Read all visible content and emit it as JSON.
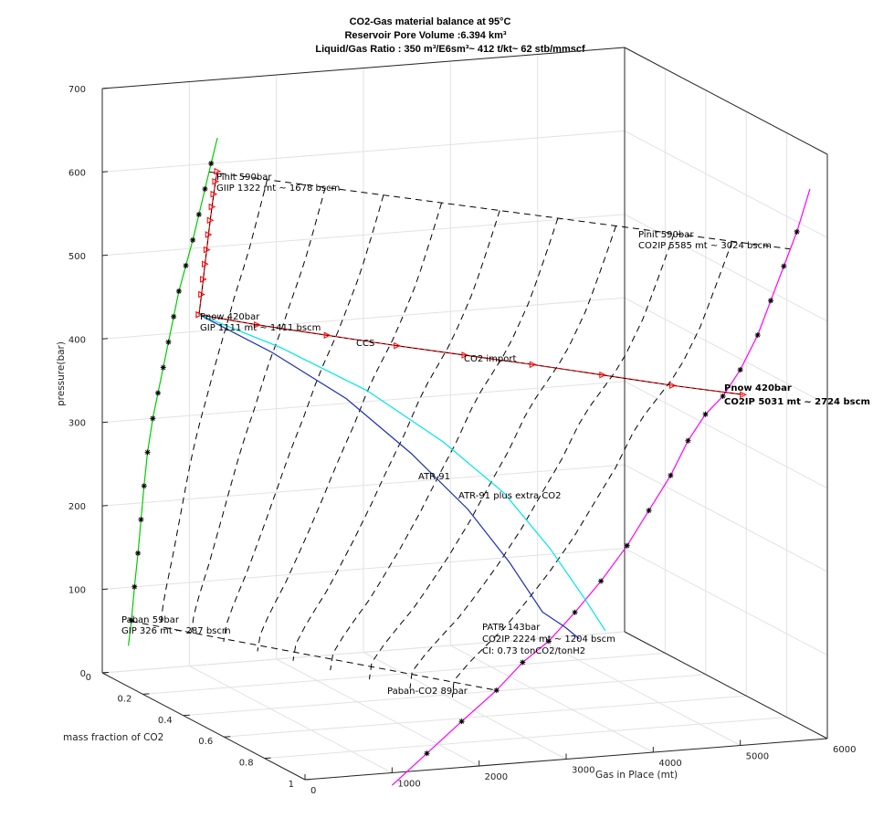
{
  "chart_data": {
    "type": "line",
    "projection": "3d",
    "title": [
      "CO2-Gas material balance at 95°C",
      "Reservoir Pore Volume :6.394 km³",
      "Liquid/Gas Ratio : 350 m³/E6sm³~ 412 t/kt~ 62 stb/mmscf"
    ],
    "xlabel": "Gas in Place  (mt)",
    "ylabel": "mass fraction of CO2",
    "zlabel": "pressure(bar)",
    "xlim": [
      0,
      6000
    ],
    "ylim": [
      0,
      1
    ],
    "zlim": [
      0,
      700
    ],
    "x_ticks": [
      "0",
      "1000",
      "2000",
      "3000",
      "4000",
      "5000",
      "6000"
    ],
    "y_ticks": [
      "0",
      "0.2",
      "0.4",
      "0.6",
      "0.8",
      "1"
    ],
    "z_ticks": [
      "0",
      "100",
      "200",
      "300",
      "400",
      "500",
      "600",
      "700"
    ],
    "grid": true,
    "series": [
      {
        "color": "#00cc00",
        "marker": "asterisk",
        "x": [
          300,
          335,
          370,
          410,
          445,
          480,
          520,
          580,
          640,
          700,
          760,
          820,
          880,
          960,
          1040,
          1110,
          1180,
          1250,
          1322
        ],
        "y": [
          0,
          0,
          0,
          0,
          0,
          0,
          0,
          0,
          0,
          0,
          0,
          0,
          0,
          0,
          0,
          0,
          0,
          0,
          0
        ],
        "z": [
          30,
          60,
          100,
          140,
          180,
          220,
          260,
          300,
          330,
          360,
          390,
          420,
          450,
          480,
          510,
          540,
          570,
          600,
          630
        ]
      },
      {
        "color": "#ff00ff",
        "marker": "asterisk",
        "x": [
          1000,
          1400,
          1800,
          2200,
          2500,
          2800,
          3100,
          3400,
          3700,
          3950,
          4200,
          4400,
          4600,
          4800,
          5000,
          5200,
          5350,
          5500,
          5650,
          5800
        ],
        "y": [
          1,
          1,
          1,
          1,
          1,
          1,
          1,
          1,
          1,
          1,
          1,
          1,
          1,
          1,
          1,
          1,
          1,
          1,
          1,
          1
        ],
        "z": [
          -15,
          20,
          55,
          89,
          120,
          143,
          175,
          210,
          250,
          290,
          330,
          370,
          400,
          420,
          450,
          490,
          530,
          570,
          610,
          660
        ]
      },
      {
        "color": "#ff0000",
        "marker": "triangle",
        "x": [
          1322,
          1300,
          1280,
          1260,
          1240,
          1220,
          1200,
          1180,
          1160,
          1140,
          1111
        ],
        "y": [
          0,
          0,
          0,
          0,
          0,
          0,
          0,
          0,
          0,
          0,
          0
        ],
        "z": [
          590,
          578,
          563,
          548,
          532,
          515,
          497,
          480,
          462,
          444,
          420
        ]
      },
      {
        "color": "#ff0000",
        "marker": "triangle",
        "x": [
          1111,
          1500,
          2000,
          2500,
          3000,
          3500,
          4000,
          4500,
          5031
        ],
        "y": [
          0,
          0.12,
          0.25,
          0.38,
          0.5,
          0.62,
          0.75,
          0.88,
          1
        ],
        "z": [
          420,
          420,
          420,
          420,
          420,
          420,
          420,
          420,
          420
        ]
      },
      {
        "color": "#1c2fb0",
        "x": [
          1111,
          1600,
          2100,
          2500,
          2800,
          3000,
          3100,
          3150,
          3150
        ],
        "y": [
          0,
          0.15,
          0.3,
          0.45,
          0.6,
          0.72,
          0.84,
          0.93,
          1
        ],
        "z": [
          420,
          390,
          350,
          300,
          250,
          200,
          155,
          148,
          143
        ]
      },
      {
        "color": "#00e5e5",
        "x": [
          1111,
          1700,
          2300,
          2800,
          3150,
          3350,
          3450,
          3450
        ],
        "y": [
          0,
          0.15,
          0.32,
          0.48,
          0.63,
          0.77,
          0.9,
          1
        ],
        "z": [
          420,
          395,
          360,
          315,
          270,
          220,
          175,
          150
        ]
      }
    ],
    "annotations": [
      "Pinit 590bar",
      "GIIP 1322 mt ~ 1678 bscm",
      "Pinit 590bar",
      "CO2IP 5585 mt ~ 3024 bscm",
      "Pnow 420bar",
      "GIP 1111 mt ~ 1411 bscm",
      "CCS",
      "CO2 import",
      "Pnow 420bar",
      "CO2IP 5031 mt ~ 2724 bscm",
      "ATR 91",
      "ATR-91 plus extra CO2",
      "Paban 59bar",
      "GIP 326 mt ~ 287 bscm",
      "PATR 143bar",
      "CO2IP 2224 mt ~ 1204 bscm",
      "CI: 0.73 tonCO2/tonH2",
      "Paban-CO2 89bar"
    ]
  }
}
